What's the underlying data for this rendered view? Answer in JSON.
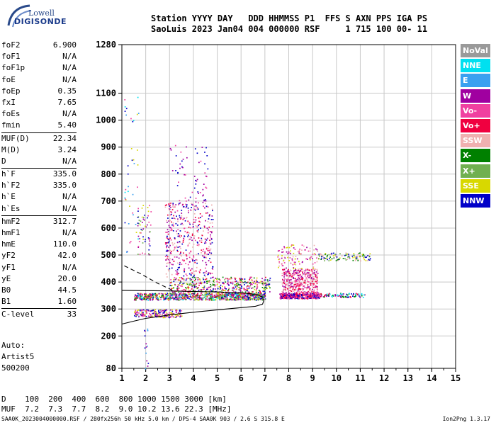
{
  "logo": {
    "line1": "Lowell",
    "line2": "DIGISONDE"
  },
  "header": {
    "line1": "Station YYYY DAY   DDD HHMMSS P1  FFS S AXN PPS IGA PS",
    "line2": "SaoLuis 2023 Jan04 004 000000 RSF     1 715 100 00- 11"
  },
  "params": [
    {
      "group": [
        {
          "name": "foF2",
          "value": "6.900"
        },
        {
          "name": "foF1",
          "value": "N/A"
        },
        {
          "name": "foF1p",
          "value": "N/A"
        },
        {
          "name": "foE",
          "value": "N/A"
        },
        {
          "name": "foEp",
          "value": "0.35"
        },
        {
          "name": "fxI",
          "value": "7.65"
        },
        {
          "name": "foEs",
          "value": "N/A"
        },
        {
          "name": "fmin",
          "value": "5.40"
        }
      ]
    },
    {
      "group": [
        {
          "name": "MUF(D)",
          "value": "22.34"
        },
        {
          "name": "M(D)",
          "value": "3.24"
        },
        {
          "name": "D",
          "value": "N/A"
        }
      ]
    },
    {
      "group": [
        {
          "name": "h`F",
          "value": "335.0"
        },
        {
          "name": "h`F2",
          "value": "335.0"
        },
        {
          "name": "h`E",
          "value": "N/A"
        },
        {
          "name": "h`Es",
          "value": "N/A"
        }
      ]
    },
    {
      "group": [
        {
          "name": "hmF2",
          "value": "312.7"
        },
        {
          "name": "hmF1",
          "value": "N/A"
        },
        {
          "name": "hmE",
          "value": "110.0"
        },
        {
          "name": "yF2",
          "value": "42.0"
        },
        {
          "name": "yF1",
          "value": "N/A"
        },
        {
          "name": "yE",
          "value": "20.0"
        },
        {
          "name": "B0",
          "value": "44.5"
        },
        {
          "name": "B1",
          "value": "1.60"
        }
      ]
    },
    {
      "group": [
        {
          "name": "C-level",
          "value": "33"
        }
      ]
    }
  ],
  "auto": [
    "Auto:",
    "Artist5",
    "500200"
  ],
  "legend": [
    {
      "label": "NoVal",
      "color": "#9a9a9a"
    },
    {
      "label": "NNE",
      "color": "#00e0f0"
    },
    {
      "label": "E",
      "color": "#3aa0f0"
    },
    {
      "label": "W",
      "color": "#a000a0"
    },
    {
      "label": "Vo-",
      "color": "#f040a0"
    },
    {
      "label": "Vo+",
      "color": "#f00040"
    },
    {
      "label": "SSW",
      "color": "#f0b0b0"
    },
    {
      "label": "X-",
      "color": "#008000"
    },
    {
      "label": "X+",
      "color": "#70b050"
    },
    {
      "label": "SSE",
      "color": "#d8d800"
    },
    {
      "label": "NNW",
      "color": "#0000c8"
    }
  ],
  "muf_table": {
    "line1": "D    100  200  400  600  800 1000 1500 3000 [km]",
    "line2": "MUF  7.2  7.3  7.7  8.2  9.0 10.2 13.6 22.3 [MHz]"
  },
  "footer": {
    "left": "SAA0K_2023004000000.RSF / 280fx256h 50 kHz 5.0 km / DPS-4 SAA0K 903 / 2.6 S 315.8 E",
    "right": "Ion2Png 1.3.17"
  },
  "chart_data": {
    "type": "scatter",
    "xlim": [
      1,
      15
    ],
    "ylim": [
      80,
      1280
    ],
    "xticks": [
      1,
      2,
      3,
      4,
      5,
      6,
      7,
      8,
      9,
      10,
      11,
      12,
      13,
      14,
      15
    ],
    "yticks": [
      80,
      200,
      300,
      400,
      500,
      600,
      700,
      800,
      900,
      1000,
      1100,
      1280
    ],
    "grid": true,
    "clusters": [
      {
        "x": [
          1.5,
          7.0
        ],
        "y": [
          335,
          360
        ],
        "n": 900,
        "colors": [
          "#a000a0",
          "#f040a0",
          "#f00040",
          "#008000",
          "#70b050",
          "#d8d800",
          "#0000c8",
          "#00e0f0"
        ]
      },
      {
        "x": [
          1.5,
          3.5
        ],
        "y": [
          270,
          300
        ],
        "n": 200,
        "colors": [
          "#d8d800",
          "#a000a0",
          "#0000c8",
          "#f040a0"
        ]
      },
      {
        "x": [
          3.0,
          7.2
        ],
        "y": [
          360,
          420
        ],
        "n": 450,
        "colors": [
          "#a000a0",
          "#f040a0",
          "#f00040",
          "#70b050",
          "#d8d800",
          "#0000c8",
          "#008000"
        ]
      },
      {
        "x": [
          2.8,
          4.8
        ],
        "y": [
          420,
          700
        ],
        "n": 450,
        "colors": [
          "#a000a0",
          "#f040a0",
          "#f00040",
          "#f0b0b0",
          "#0000c8"
        ]
      },
      {
        "x": [
          3.0,
          4.6
        ],
        "y": [
          700,
          910
        ],
        "n": 60,
        "colors": [
          "#a000a0",
          "#f040a0",
          "#0000c8"
        ]
      },
      {
        "x": [
          7.6,
          9.3
        ],
        "y": [
          340,
          360
        ],
        "n": 350,
        "colors": [
          "#f00040",
          "#f040a0",
          "#a000a0",
          "#0000c8"
        ]
      },
      {
        "x": [
          7.7,
          9.2
        ],
        "y": [
          360,
          450
        ],
        "n": 400,
        "colors": [
          "#f00040",
          "#f040a0",
          "#f0b0b0",
          "#a000a0"
        ]
      },
      {
        "x": [
          7.5,
          9.2
        ],
        "y": [
          450,
          540
        ],
        "n": 110,
        "colors": [
          "#f040a0",
          "#f0b0b0",
          "#d8d800",
          "#a000a0"
        ]
      },
      {
        "x": [
          9.2,
          11.4
        ],
        "y": [
          480,
          510
        ],
        "n": 110,
        "colors": [
          "#d8d800",
          "#70b050",
          "#008000",
          "#f0b0b0",
          "#0000c8"
        ]
      },
      {
        "x": [
          9.3,
          11.2
        ],
        "y": [
          345,
          360
        ],
        "n": 90,
        "colors": [
          "#f00040",
          "#a000a0",
          "#0000c8",
          "#00e0f0",
          "#008000"
        ]
      },
      {
        "x": [
          1.1,
          1.7
        ],
        "y": [
          500,
          1100
        ],
        "n": 40,
        "colors": [
          "#00e0f0",
          "#3aa0f0",
          "#d8d800",
          "#0000c8",
          "#f040a0"
        ]
      },
      {
        "x": [
          1.6,
          2.2
        ],
        "y": [
          500,
          690
        ],
        "n": 60,
        "colors": [
          "#0000c8",
          "#a000a0",
          "#d8d800",
          "#70b050",
          "#f040a0"
        ]
      },
      {
        "x": [
          1.9,
          2.1
        ],
        "y": [
          80,
          250
        ],
        "n": 14,
        "colors": [
          "#0000c8",
          "#3aa0f0",
          "#a000a0"
        ]
      }
    ],
    "profile_solid": [
      [
        1.0,
        244
      ],
      [
        1.5,
        255
      ],
      [
        2.0,
        265
      ],
      [
        3.0,
        278
      ],
      [
        4.0,
        288
      ],
      [
        5.0,
        297
      ],
      [
        6.0,
        305
      ],
      [
        6.6,
        310
      ],
      [
        6.9,
        318
      ],
      [
        6.95,
        330
      ],
      [
        6.9,
        345
      ],
      [
        6.6,
        355
      ],
      [
        6.0,
        360
      ],
      [
        5.0,
        363
      ],
      [
        4.0,
        365
      ],
      [
        3.0,
        367
      ],
      [
        2.0,
        368
      ],
      [
        1.0,
        369
      ]
    ],
    "profile_dashed": [
      [
        1.1,
        460
      ],
      [
        1.8,
        430
      ],
      [
        2.5,
        395
      ],
      [
        3.0,
        375
      ],
      [
        3.2,
        365
      ]
    ]
  }
}
